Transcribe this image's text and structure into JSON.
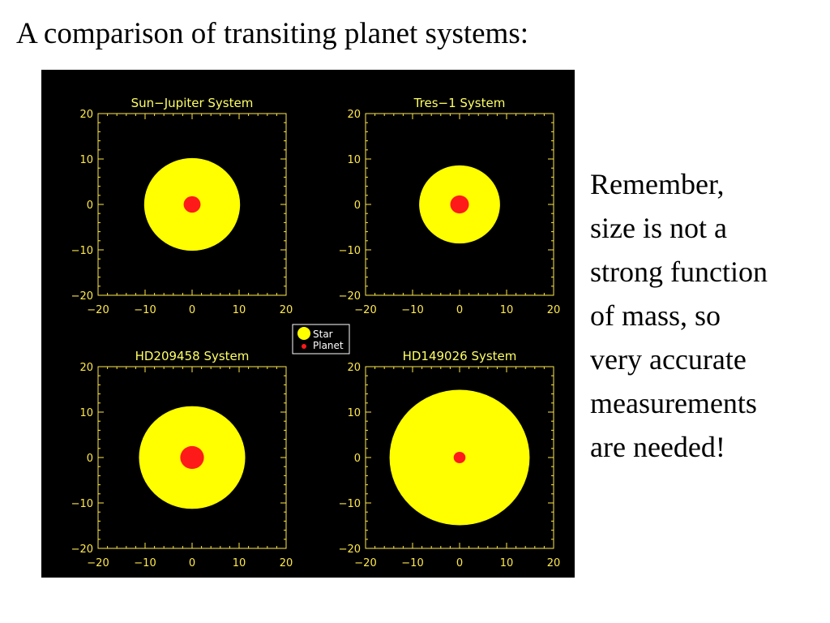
{
  "title": "A comparison of transiting planet systems:",
  "note_lines": [
    "Remember,",
    "size is not a",
    "strong function",
    "of mass, so",
    "very accurate",
    "measurements",
    "are needed!"
  ],
  "colors": {
    "background": "#000000",
    "axes": "#ffe94a",
    "star": "#ffff00",
    "planet": "#ff1a1a",
    "title_text": "#ffff66"
  },
  "chart_data": [
    {
      "type": "scatter",
      "title": "Sun−Jupiter System",
      "xlim": [
        -20,
        20
      ],
      "ylim": [
        -20,
        20
      ],
      "xticks": [
        -20,
        -10,
        0,
        10,
        20
      ],
      "yticks": [
        -20,
        -10,
        0,
        10,
        20
      ],
      "star": {
        "x": 0,
        "y": 0,
        "radius": 10.2
      },
      "planet": {
        "x": 0,
        "y": 0,
        "radius": 1.0
      }
    },
    {
      "type": "scatter",
      "title": "Tres−1 System",
      "xlim": [
        -20,
        20
      ],
      "ylim": [
        -20,
        20
      ],
      "xticks": [
        -20,
        -10,
        0,
        10,
        20
      ],
      "yticks": [
        -20,
        -10,
        0,
        10,
        20
      ],
      "star": {
        "x": 0,
        "y": 0,
        "radius": 8.6
      },
      "planet": {
        "x": 0,
        "y": 0,
        "radius": 1.1
      }
    },
    {
      "type": "scatter",
      "title": "HD209458 System",
      "xlim": [
        -20,
        20
      ],
      "ylim": [
        -20,
        20
      ],
      "xticks": [
        -20,
        -10,
        0,
        10,
        20
      ],
      "yticks": [
        -20,
        -10,
        0,
        10,
        20
      ],
      "star": {
        "x": 0,
        "y": 0,
        "radius": 11.3
      },
      "planet": {
        "x": 0,
        "y": 0,
        "radius": 1.4
      }
    },
    {
      "type": "scatter",
      "title": "HD149026 System",
      "xlim": [
        -20,
        20
      ],
      "ylim": [
        -20,
        20
      ],
      "xticks": [
        -20,
        -10,
        0,
        10,
        20
      ],
      "yticks": [
        -20,
        -10,
        0,
        10,
        20
      ],
      "star": {
        "x": 0,
        "y": 0,
        "radius": 14.9
      },
      "planet": {
        "x": 0,
        "y": 0,
        "radius": 0.7
      }
    }
  ],
  "legend": {
    "placement": "center",
    "items": [
      {
        "label": "Star",
        "marker": "star"
      },
      {
        "label": "Planet",
        "marker": "planet"
      }
    ]
  }
}
